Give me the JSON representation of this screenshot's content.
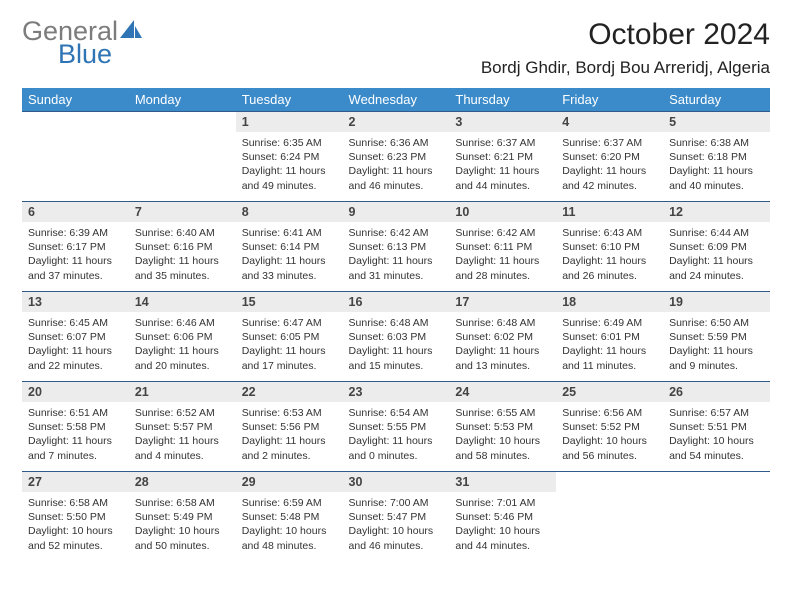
{
  "logo": {
    "word1": "General",
    "word2": "Blue"
  },
  "title": {
    "month": "October 2024",
    "location": "Bordj Ghdir, Bordj Bou Arreridj, Algeria"
  },
  "headers": [
    "Sunday",
    "Monday",
    "Tuesday",
    "Wednesday",
    "Thursday",
    "Friday",
    "Saturday"
  ],
  "colors": {
    "header_bg": "#3b8bca",
    "header_text": "#ffffff",
    "rule": "#2f5a8a",
    "daynum_bg": "#ececec",
    "logo_general": "#7c7c7c",
    "logo_blue": "#2f75b5",
    "logo_icon": "#2f75b5"
  },
  "weeks": [
    [
      {
        "n": "",
        "sr": "",
        "ss": "",
        "dl1": "",
        "dl2": "",
        "empty": true
      },
      {
        "n": "",
        "sr": "",
        "ss": "",
        "dl1": "",
        "dl2": "",
        "empty": true
      },
      {
        "n": "1",
        "sr": "Sunrise: 6:35 AM",
        "ss": "Sunset: 6:24 PM",
        "dl1": "Daylight: 11 hours",
        "dl2": "and 49 minutes."
      },
      {
        "n": "2",
        "sr": "Sunrise: 6:36 AM",
        "ss": "Sunset: 6:23 PM",
        "dl1": "Daylight: 11 hours",
        "dl2": "and 46 minutes."
      },
      {
        "n": "3",
        "sr": "Sunrise: 6:37 AM",
        "ss": "Sunset: 6:21 PM",
        "dl1": "Daylight: 11 hours",
        "dl2": "and 44 minutes."
      },
      {
        "n": "4",
        "sr": "Sunrise: 6:37 AM",
        "ss": "Sunset: 6:20 PM",
        "dl1": "Daylight: 11 hours",
        "dl2": "and 42 minutes."
      },
      {
        "n": "5",
        "sr": "Sunrise: 6:38 AM",
        "ss": "Sunset: 6:18 PM",
        "dl1": "Daylight: 11 hours",
        "dl2": "and 40 minutes."
      }
    ],
    [
      {
        "n": "6",
        "sr": "Sunrise: 6:39 AM",
        "ss": "Sunset: 6:17 PM",
        "dl1": "Daylight: 11 hours",
        "dl2": "and 37 minutes."
      },
      {
        "n": "7",
        "sr": "Sunrise: 6:40 AM",
        "ss": "Sunset: 6:16 PM",
        "dl1": "Daylight: 11 hours",
        "dl2": "and 35 minutes."
      },
      {
        "n": "8",
        "sr": "Sunrise: 6:41 AM",
        "ss": "Sunset: 6:14 PM",
        "dl1": "Daylight: 11 hours",
        "dl2": "and 33 minutes."
      },
      {
        "n": "9",
        "sr": "Sunrise: 6:42 AM",
        "ss": "Sunset: 6:13 PM",
        "dl1": "Daylight: 11 hours",
        "dl2": "and 31 minutes."
      },
      {
        "n": "10",
        "sr": "Sunrise: 6:42 AM",
        "ss": "Sunset: 6:11 PM",
        "dl1": "Daylight: 11 hours",
        "dl2": "and 28 minutes."
      },
      {
        "n": "11",
        "sr": "Sunrise: 6:43 AM",
        "ss": "Sunset: 6:10 PM",
        "dl1": "Daylight: 11 hours",
        "dl2": "and 26 minutes."
      },
      {
        "n": "12",
        "sr": "Sunrise: 6:44 AM",
        "ss": "Sunset: 6:09 PM",
        "dl1": "Daylight: 11 hours",
        "dl2": "and 24 minutes."
      }
    ],
    [
      {
        "n": "13",
        "sr": "Sunrise: 6:45 AM",
        "ss": "Sunset: 6:07 PM",
        "dl1": "Daylight: 11 hours",
        "dl2": "and 22 minutes."
      },
      {
        "n": "14",
        "sr": "Sunrise: 6:46 AM",
        "ss": "Sunset: 6:06 PM",
        "dl1": "Daylight: 11 hours",
        "dl2": "and 20 minutes."
      },
      {
        "n": "15",
        "sr": "Sunrise: 6:47 AM",
        "ss": "Sunset: 6:05 PM",
        "dl1": "Daylight: 11 hours",
        "dl2": "and 17 minutes."
      },
      {
        "n": "16",
        "sr": "Sunrise: 6:48 AM",
        "ss": "Sunset: 6:03 PM",
        "dl1": "Daylight: 11 hours",
        "dl2": "and 15 minutes."
      },
      {
        "n": "17",
        "sr": "Sunrise: 6:48 AM",
        "ss": "Sunset: 6:02 PM",
        "dl1": "Daylight: 11 hours",
        "dl2": "and 13 minutes."
      },
      {
        "n": "18",
        "sr": "Sunrise: 6:49 AM",
        "ss": "Sunset: 6:01 PM",
        "dl1": "Daylight: 11 hours",
        "dl2": "and 11 minutes."
      },
      {
        "n": "19",
        "sr": "Sunrise: 6:50 AM",
        "ss": "Sunset: 5:59 PM",
        "dl1": "Daylight: 11 hours",
        "dl2": "and 9 minutes."
      }
    ],
    [
      {
        "n": "20",
        "sr": "Sunrise: 6:51 AM",
        "ss": "Sunset: 5:58 PM",
        "dl1": "Daylight: 11 hours",
        "dl2": "and 7 minutes."
      },
      {
        "n": "21",
        "sr": "Sunrise: 6:52 AM",
        "ss": "Sunset: 5:57 PM",
        "dl1": "Daylight: 11 hours",
        "dl2": "and 4 minutes."
      },
      {
        "n": "22",
        "sr": "Sunrise: 6:53 AM",
        "ss": "Sunset: 5:56 PM",
        "dl1": "Daylight: 11 hours",
        "dl2": "and 2 minutes."
      },
      {
        "n": "23",
        "sr": "Sunrise: 6:54 AM",
        "ss": "Sunset: 5:55 PM",
        "dl1": "Daylight: 11 hours",
        "dl2": "and 0 minutes."
      },
      {
        "n": "24",
        "sr": "Sunrise: 6:55 AM",
        "ss": "Sunset: 5:53 PM",
        "dl1": "Daylight: 10 hours",
        "dl2": "and 58 minutes."
      },
      {
        "n": "25",
        "sr": "Sunrise: 6:56 AM",
        "ss": "Sunset: 5:52 PM",
        "dl1": "Daylight: 10 hours",
        "dl2": "and 56 minutes."
      },
      {
        "n": "26",
        "sr": "Sunrise: 6:57 AM",
        "ss": "Sunset: 5:51 PM",
        "dl1": "Daylight: 10 hours",
        "dl2": "and 54 minutes."
      }
    ],
    [
      {
        "n": "27",
        "sr": "Sunrise: 6:58 AM",
        "ss": "Sunset: 5:50 PM",
        "dl1": "Daylight: 10 hours",
        "dl2": "and 52 minutes."
      },
      {
        "n": "28",
        "sr": "Sunrise: 6:58 AM",
        "ss": "Sunset: 5:49 PM",
        "dl1": "Daylight: 10 hours",
        "dl2": "and 50 minutes."
      },
      {
        "n": "29",
        "sr": "Sunrise: 6:59 AM",
        "ss": "Sunset: 5:48 PM",
        "dl1": "Daylight: 10 hours",
        "dl2": "and 48 minutes."
      },
      {
        "n": "30",
        "sr": "Sunrise: 7:00 AM",
        "ss": "Sunset: 5:47 PM",
        "dl1": "Daylight: 10 hours",
        "dl2": "and 46 minutes."
      },
      {
        "n": "31",
        "sr": "Sunrise: 7:01 AM",
        "ss": "Sunset: 5:46 PM",
        "dl1": "Daylight: 10 hours",
        "dl2": "and 44 minutes."
      },
      {
        "n": "",
        "sr": "",
        "ss": "",
        "dl1": "",
        "dl2": "",
        "empty": true
      },
      {
        "n": "",
        "sr": "",
        "ss": "",
        "dl1": "",
        "dl2": "",
        "empty": true
      }
    ]
  ]
}
